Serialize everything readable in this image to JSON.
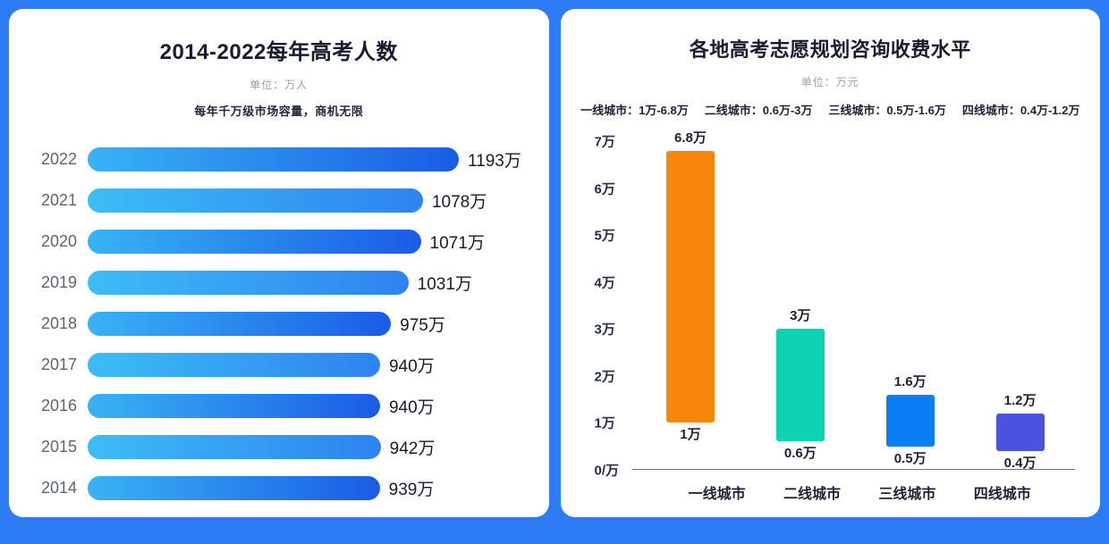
{
  "page": {
    "background_color": "#2e7cf5",
    "card_color": "#ffffff"
  },
  "chart_data": [
    {
      "type": "bar",
      "orientation": "horizontal",
      "title": "2014-2022每年高考人数",
      "unit_label": "单位：万人",
      "subtitle": "每年千万级市场容量，商机无限",
      "categories": [
        "2022",
        "2021",
        "2020",
        "2019",
        "2018",
        "2017",
        "2016",
        "2015",
        "2014"
      ],
      "values": [
        1193,
        1078,
        1071,
        1031,
        975,
        940,
        940,
        942,
        939
      ],
      "value_labels": [
        "1193万",
        "1078万",
        "1071万",
        "1031万",
        "975万",
        "940万",
        "940万",
        "942万",
        "939万"
      ],
      "xlim": [
        0,
        1193
      ],
      "bar_gradient": [
        "#39b3f4",
        "#1a5ce6"
      ],
      "bar_gradient_alt": [
        "#3cbdf6",
        "#2e83f0"
      ],
      "grid": false,
      "legend_position": "none"
    },
    {
      "type": "bar",
      "subtype": "floating-range",
      "title": "各地高考志愿规划咨询收费水平",
      "unit_label": "单位：万元",
      "legend_items": [
        "一线城市：1万-6.8万",
        "二线城市：0.6万-3万",
        "三线城市：0.5万-1.6万",
        "四线城市：0.4万-1.2万"
      ],
      "categories": [
        "一线城市",
        "二线城市",
        "三线城市",
        "四线城市"
      ],
      "low": [
        1,
        0.6,
        0.5,
        0.4
      ],
      "high": [
        6.8,
        3,
        1.6,
        1.2
      ],
      "low_labels": [
        "1万",
        "0.6万",
        "0.5万",
        "0.4万"
      ],
      "high_labels": [
        "6.8万",
        "3万",
        "1.6万",
        "1.2万"
      ],
      "colors": [
        "#f8860a",
        "#0ed2b4",
        "#0a7ef5",
        "#4a52e0"
      ],
      "ylim": [
        0,
        7
      ],
      "ytick_labels": [
        "7万",
        "6万",
        "5万",
        "4万",
        "3万",
        "2万",
        "1万",
        "0/万"
      ],
      "grid": false,
      "legend_position": "top"
    }
  ]
}
